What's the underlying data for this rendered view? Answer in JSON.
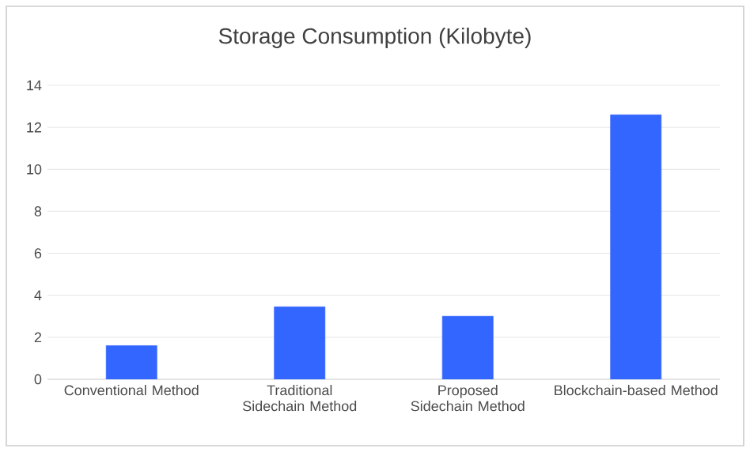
{
  "chart_data": {
    "type": "bar",
    "title": "Storage Consumption (Kilobyte)",
    "categories": [
      "Conventional Method",
      "Traditional Sidechain Method",
      "Proposed Sidechain Method",
      "Blockchain-based Method"
    ],
    "values": [
      1.6,
      3.45,
      3.0,
      12.6
    ],
    "color": "#3366ff",
    "ylim": [
      0,
      14
    ],
    "yticks": [
      0,
      2,
      4,
      6,
      8,
      10,
      12,
      14
    ],
    "grid": "y"
  }
}
